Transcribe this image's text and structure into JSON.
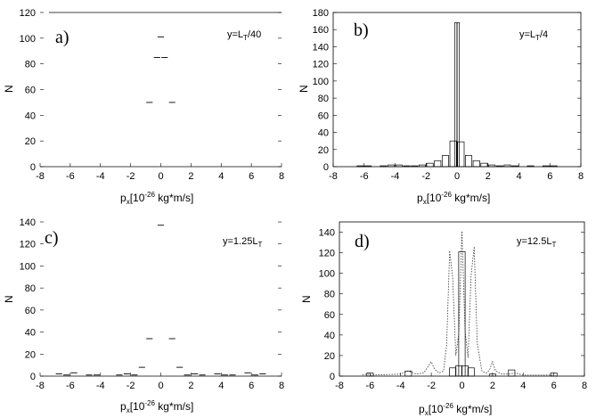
{
  "chart_data": [
    {
      "type": "bar",
      "panel": "a)",
      "annotation": "y=L",
      "annotation_sub": "T",
      "annotation_tail": "/40",
      "ylabel": "N",
      "xlabel": "",
      "xlim": [
        -8,
        8
      ],
      "ylim": [
        0,
        120
      ],
      "xticks": [
        "-8",
        "-6",
        "-4",
        "-2",
        "0",
        "2",
        "4",
        "6",
        "8"
      ],
      "yticks": [
        "0",
        "20",
        "40",
        "60",
        "80",
        "100",
        "120"
      ],
      "bars": [
        {
          "x": -0.75,
          "y": 50
        },
        {
          "x": -0.25,
          "y": 85
        },
        {
          "x": 0.0,
          "y": 101
        },
        {
          "x": 0.25,
          "y": 85
        },
        {
          "x": 0.75,
          "y": 50
        }
      ]
    },
    {
      "type": "bar",
      "panel": "b)",
      "annotation": "y=L",
      "annotation_sub": "T",
      "annotation_tail": "/4",
      "ylabel": "N",
      "xlabel": "p",
      "xlabel_sub": "x",
      "xlabel_tail": "[10",
      "xlabel_sup": "-26",
      "xlabel_end": " kg*m/s]",
      "xlim": [
        -8,
        8
      ],
      "ylim": [
        0,
        180
      ],
      "xticks": [
        "-8",
        "-6",
        "-4",
        "-2",
        "0",
        "2",
        "4",
        "6",
        "8"
      ],
      "yticks": [
        "0",
        "20",
        "40",
        "60",
        "80",
        "100",
        "120",
        "140",
        "160",
        "180"
      ],
      "bars": [
        {
          "x": -6.25,
          "y": 1
        },
        {
          "x": -5.75,
          "y": 1
        },
        {
          "x": -4.75,
          "y": 1
        },
        {
          "x": -4.25,
          "y": 2
        },
        {
          "x": -3.75,
          "y": 2
        },
        {
          "x": -3.25,
          "y": 1
        },
        {
          "x": -2.75,
          "y": 1
        },
        {
          "x": -2.25,
          "y": 2
        },
        {
          "x": -1.75,
          "y": 4
        },
        {
          "x": -1.25,
          "y": 7
        },
        {
          "x": -0.75,
          "y": 13
        },
        {
          "x": -0.25,
          "y": 30
        },
        {
          "x": -0.08,
          "y": 168
        },
        {
          "x": 0.08,
          "y": 168
        },
        {
          "x": 0.25,
          "y": 29
        },
        {
          "x": 0.75,
          "y": 13
        },
        {
          "x": 1.25,
          "y": 7
        },
        {
          "x": 1.75,
          "y": 4
        },
        {
          "x": 2.25,
          "y": 2
        },
        {
          "x": 2.75,
          "y": 1
        },
        {
          "x": 3.25,
          "y": 2
        },
        {
          "x": 3.75,
          "y": 1
        },
        {
          "x": 4.75,
          "y": 1
        },
        {
          "x": 5.75,
          "y": 1
        },
        {
          "x": 6.25,
          "y": 1
        }
      ]
    },
    {
      "type": "bar",
      "panel": "c)",
      "annotation": "y=1.25L",
      "annotation_sub": "T",
      "annotation_tail": "",
      "ylabel": "N",
      "xlabel": "p",
      "xlabel_sub": "x",
      "xlabel_tail": "[10",
      "xlabel_sup": "-26",
      "xlabel_end": " kg*m/s]",
      "xlim": [
        -8,
        8
      ],
      "ylim": [
        0,
        140
      ],
      "xticks": [
        "-8",
        "-6",
        "-4",
        "-2",
        "0",
        "2",
        "4",
        "6",
        "8"
      ],
      "yticks": [
        "0",
        "20",
        "40",
        "60",
        "80",
        "100",
        "120",
        "140"
      ],
      "bars": [
        {
          "x": -6.75,
          "y": 2
        },
        {
          "x": -6.25,
          "y": 1
        },
        {
          "x": -5.75,
          "y": 3
        },
        {
          "x": -4.75,
          "y": 1
        },
        {
          "x": -4.25,
          "y": 1
        },
        {
          "x": -2.75,
          "y": 1
        },
        {
          "x": -2.25,
          "y": 2
        },
        {
          "x": -1.75,
          "y": 1
        },
        {
          "x": -1.25,
          "y": 8
        },
        {
          "x": -0.75,
          "y": 34
        },
        {
          "x": 0.0,
          "y": 137
        },
        {
          "x": 0.75,
          "y": 34
        },
        {
          "x": 1.25,
          "y": 8
        },
        {
          "x": 1.75,
          "y": 1
        },
        {
          "x": 2.25,
          "y": 2
        },
        {
          "x": 2.75,
          "y": 1
        },
        {
          "x": 3.75,
          "y": 2
        },
        {
          "x": 4.25,
          "y": 1
        },
        {
          "x": 4.75,
          "y": 1
        },
        {
          "x": 5.75,
          "y": 3
        },
        {
          "x": 6.25,
          "y": 1
        },
        {
          "x": 6.75,
          "y": 2
        }
      ]
    },
    {
      "type": "bar",
      "panel": "d)",
      "annotation": "y=12.5L",
      "annotation_sub": "T",
      "annotation_tail": "",
      "ylabel": "N",
      "xlabel": "p",
      "xlabel_sub": "x",
      "xlabel_tail": "[10",
      "xlabel_sup": "-26",
      "xlabel_end": " kg*m/s]",
      "xlim": [
        -8,
        8
      ],
      "ylim": [
        0,
        150
      ],
      "xticks": [
        "-8",
        "-6",
        "-4",
        "-2",
        "0",
        "2",
        "4",
        "6",
        "8"
      ],
      "yticks": [
        "0",
        "20",
        "40",
        "60",
        "80",
        "100",
        "120",
        "140"
      ],
      "bars": [
        {
          "x": -6.0,
          "y": 3
        },
        {
          "x": -3.5,
          "y": 5
        },
        {
          "x": -0.6,
          "y": 8
        },
        {
          "x": -0.2,
          "y": 10
        },
        {
          "x": 0.0,
          "y": 121
        },
        {
          "x": 0.2,
          "y": 10
        },
        {
          "x": 0.6,
          "y": 8
        },
        {
          "x": 2.0,
          "y": 2
        },
        {
          "x": 3.25,
          "y": 6
        },
        {
          "x": 6.0,
          "y": 3
        }
      ],
      "dotted": [
        [
          -6.5,
          1
        ],
        [
          -6.2,
          2
        ],
        [
          -5.9,
          1
        ],
        [
          -4.0,
          2
        ],
        [
          -3.5,
          5
        ],
        [
          -3.0,
          2
        ],
        [
          -2.5,
          3
        ],
        [
          -2.0,
          14
        ],
        [
          -1.8,
          7
        ],
        [
          -1.5,
          3
        ],
        [
          -1.2,
          5
        ],
        [
          -1.0,
          30
        ],
        [
          -0.8,
          122
        ],
        [
          -0.6,
          95
        ],
        [
          -0.4,
          20
        ],
        [
          -0.2,
          42
        ],
        [
          0.0,
          141
        ],
        [
          0.2,
          45
        ],
        [
          0.4,
          18
        ],
        [
          0.6,
          98
        ],
        [
          0.8,
          126
        ],
        [
          1.0,
          32
        ],
        [
          1.3,
          5
        ],
        [
          1.6,
          3
        ],
        [
          1.8,
          6
        ],
        [
          2.0,
          14
        ],
        [
          2.2,
          5
        ],
        [
          2.6,
          2
        ],
        [
          3.0,
          2
        ],
        [
          3.5,
          3
        ],
        [
          4.0,
          1
        ],
        [
          6.0,
          1
        ]
      ]
    }
  ]
}
